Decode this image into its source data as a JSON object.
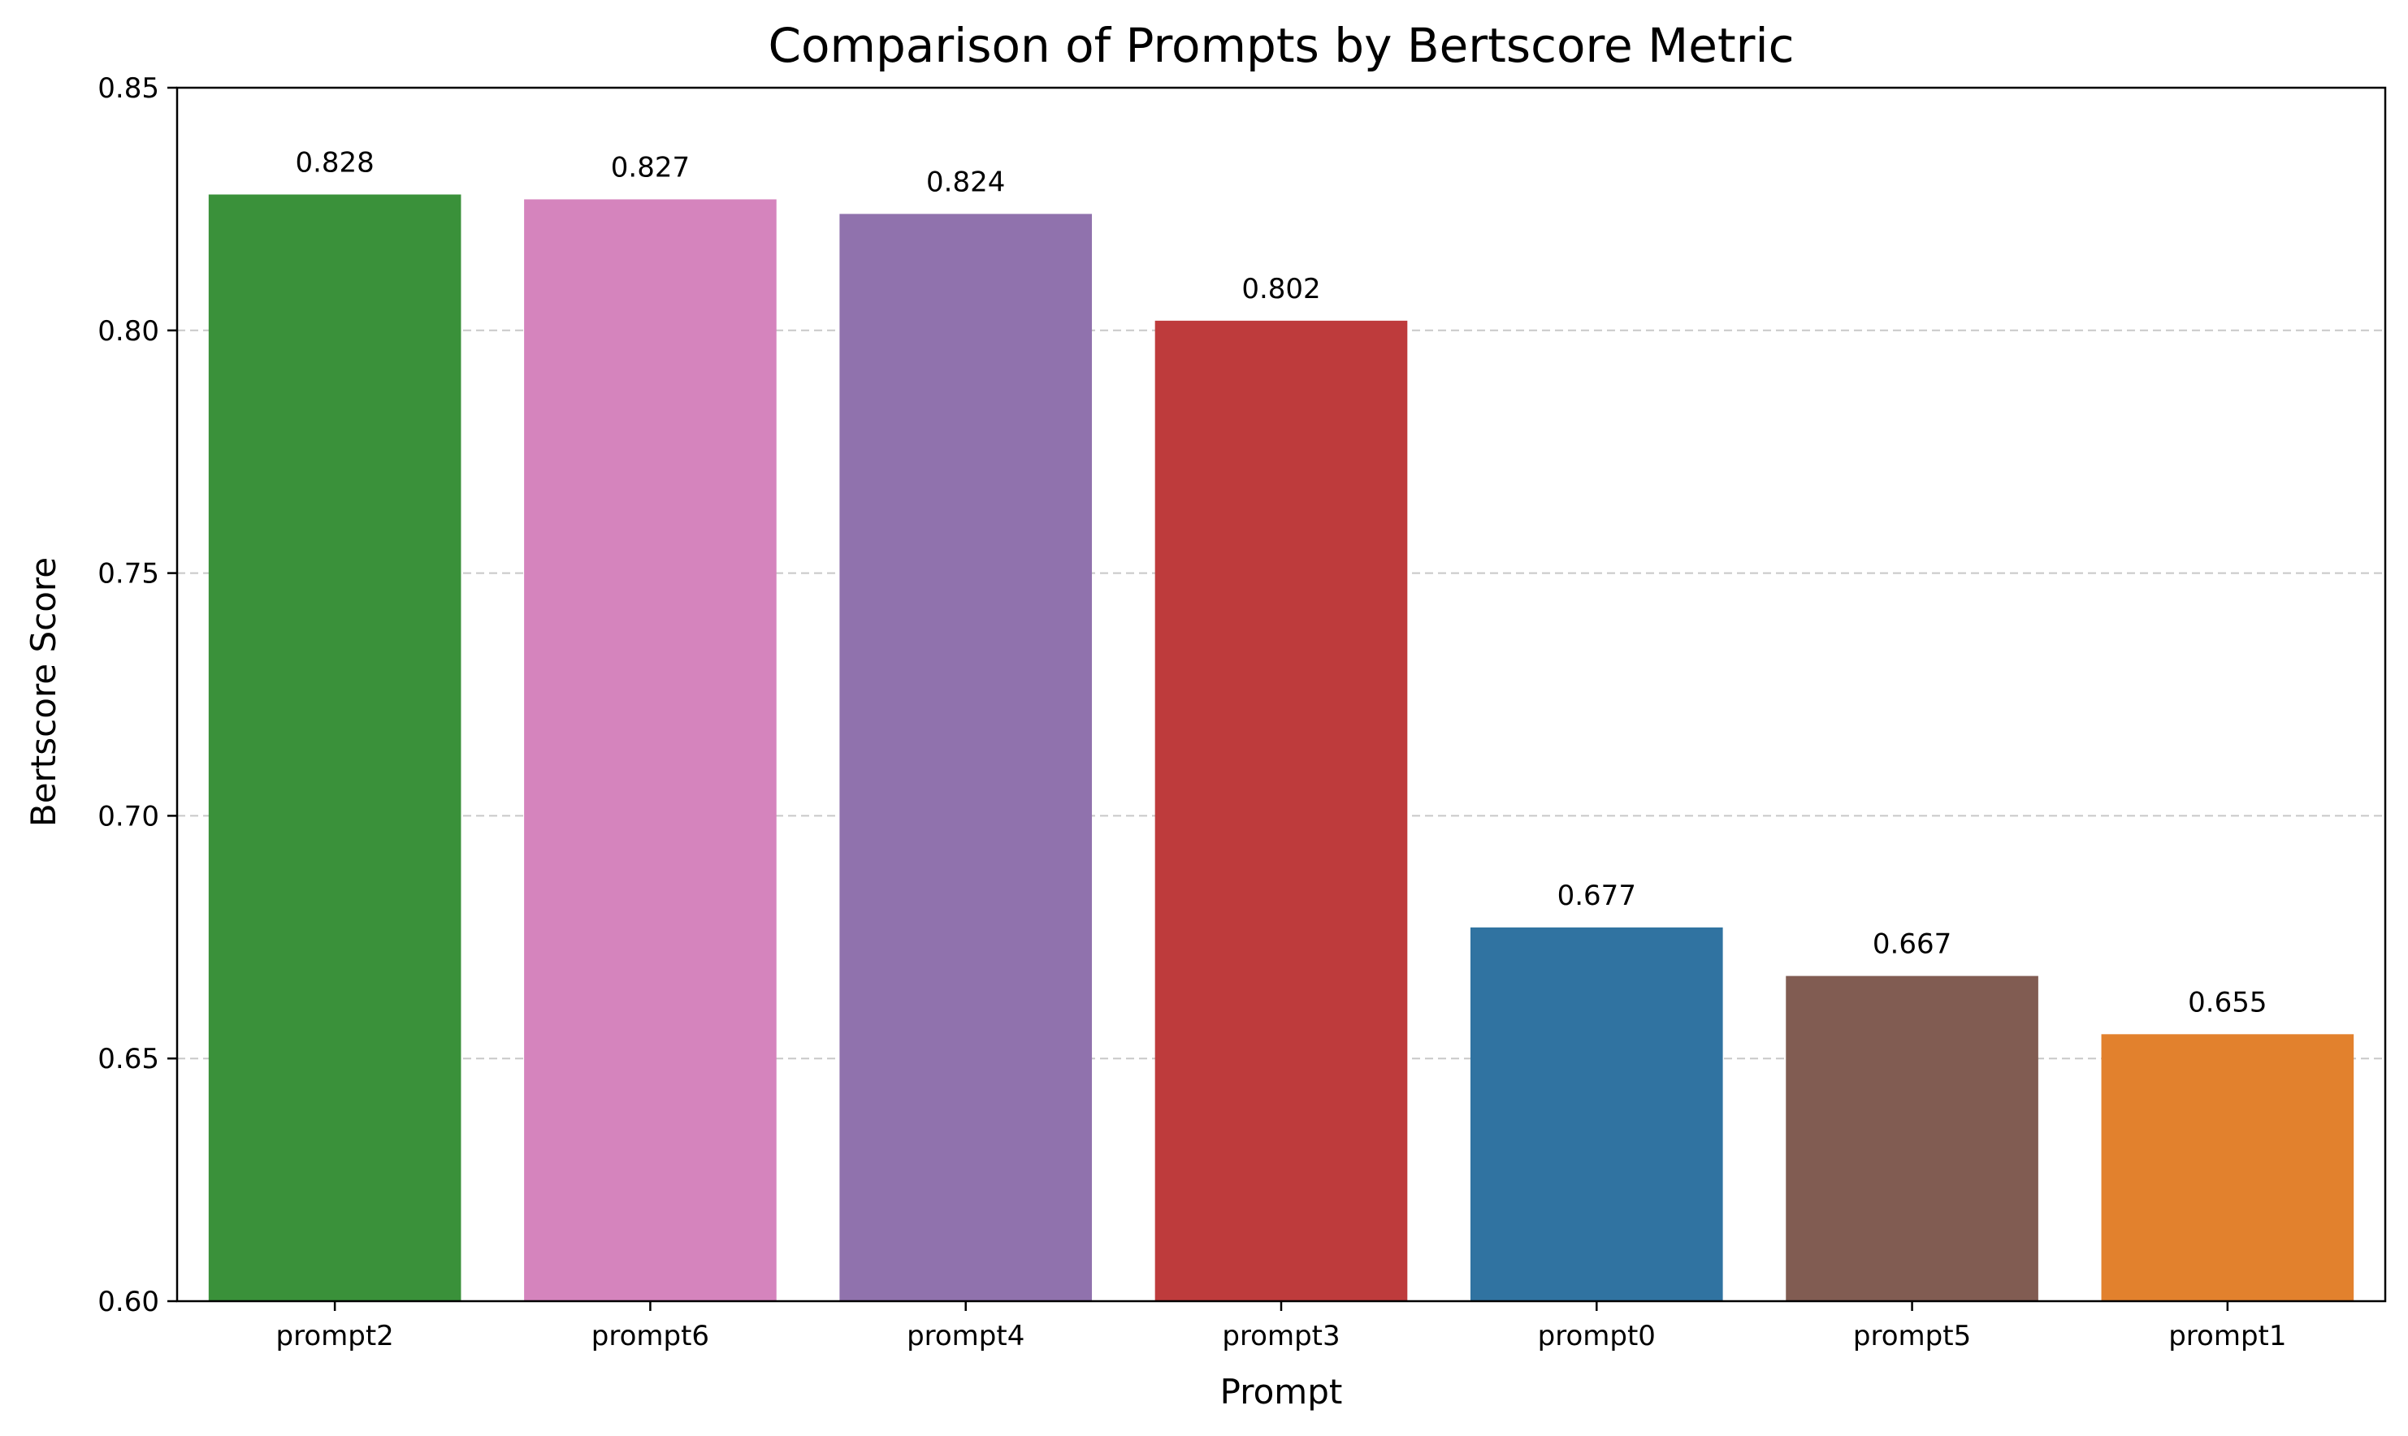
{
  "chart_data": {
    "type": "bar",
    "title": "Comparison of Prompts by Bertscore Metric",
    "xlabel": "Prompt",
    "ylabel": "Bertscore Score",
    "categories": [
      "prompt2",
      "prompt6",
      "prompt4",
      "prompt3",
      "prompt0",
      "prompt5",
      "prompt1"
    ],
    "values": [
      0.828,
      0.827,
      0.824,
      0.802,
      0.677,
      0.667,
      0.655
    ],
    "value_labels": [
      "0.828",
      "0.827",
      "0.824",
      "0.802",
      "0.677",
      "0.667",
      "0.655"
    ],
    "colors": [
      "#3a913a",
      "#d584bd",
      "#9072ad",
      "#be3b3c",
      "#3073a1",
      "#815c52",
      "#e2812d"
    ],
    "ylim": [
      0.6,
      0.85
    ],
    "yticks": [
      0.6,
      0.65,
      0.7,
      0.75,
      0.8,
      0.85
    ],
    "ytick_labels": [
      "0.60",
      "0.65",
      "0.70",
      "0.75",
      "0.80",
      "0.85"
    ],
    "grid": {
      "axis": "y",
      "style": "dashed",
      "color": "#c8c8c8"
    },
    "legend": "none"
  }
}
